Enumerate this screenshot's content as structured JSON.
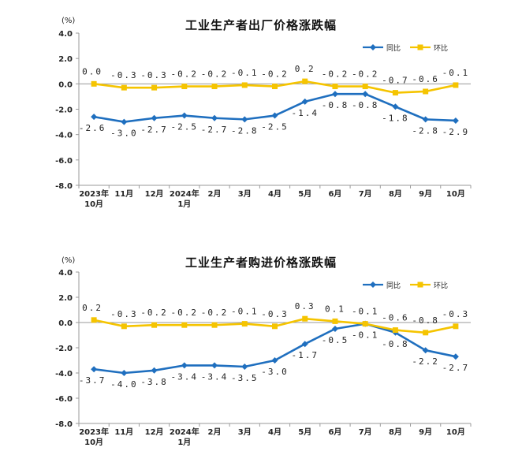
{
  "charts": [
    {
      "unit": "(%)",
      "chart_data": {
        "type": "line",
        "title": "工业生产者出厂价格涨跌幅",
        "categories": [
          "2023年\n10月",
          "11月",
          "12月",
          "2024年\n1月",
          "2月",
          "3月",
          "4月",
          "5月",
          "6月",
          "7月",
          "8月",
          "9月",
          "10月"
        ],
        "ylim": [
          -8.0,
          4.0
        ],
        "yticks": [
          "4.0",
          "2.0",
          "0.0",
          "-2.0",
          "-4.0",
          "-6.0",
          "-8.0"
        ],
        "legend_position": "top-right",
        "series": [
          {
            "name": "同比",
            "color": "#1F6FBF",
            "values": [
              -2.6,
              -3.0,
              -2.7,
              -2.5,
              -2.7,
              -2.8,
              -2.5,
              -1.4,
              -0.8,
              -0.8,
              -1.8,
              -2.8,
              -2.9
            ],
            "labels": [
              "-2.6",
              "-3.0",
              "-2.7",
              "-2.5",
              "-2.7",
              "-2.8",
              "-2.5",
              "-1.4",
              "-0.8",
              "-0.8",
              "-1.8",
              "-2.8",
              "-2.9"
            ]
          },
          {
            "name": "环比",
            "color": "#F5C400",
            "values": [
              0.0,
              -0.3,
              -0.3,
              -0.2,
              -0.2,
              -0.1,
              -0.2,
              0.2,
              -0.2,
              -0.2,
              -0.7,
              -0.6,
              -0.1
            ],
            "labels": [
              "0.0",
              "-0.3",
              "-0.3",
              "-0.2",
              "-0.2",
              "-0.1",
              "-0.2",
              "0.2",
              "-0.2",
              "-0.2",
              "-0.7",
              "-0.6",
              "-0.1"
            ]
          }
        ]
      }
    },
    {
      "unit": "(%)",
      "chart_data": {
        "type": "line",
        "title": "工业生产者购进价格涨跌幅",
        "categories": [
          "2023年\n10月",
          "11月",
          "12月",
          "2024年\n1月",
          "2月",
          "3月",
          "4月",
          "5月",
          "6月",
          "7月",
          "8月",
          "9月",
          "10月"
        ],
        "ylim": [
          -8.0,
          4.0
        ],
        "yticks": [
          "4.0",
          "2.0",
          "0.0",
          "-2.0",
          "-4.0",
          "-6.0",
          "-8.0"
        ],
        "legend_position": "top-right",
        "series": [
          {
            "name": "同比",
            "color": "#1F6FBF",
            "values": [
              -3.7,
              -4.0,
              -3.8,
              -3.4,
              -3.4,
              -3.5,
              -3.0,
              -1.7,
              -0.5,
              -0.1,
              -0.8,
              -2.2,
              -2.7
            ],
            "labels": [
              "-3.7",
              "-4.0",
              "-3.8",
              "-3.4",
              "-3.4",
              "-3.5",
              "-3.0",
              "-1.7",
              "-0.5",
              "-0.1",
              "-0.8",
              "-2.2",
              "-2.7"
            ]
          },
          {
            "name": "环比",
            "color": "#F5C400",
            "values": [
              0.2,
              -0.3,
              -0.2,
              -0.2,
              -0.2,
              -0.1,
              -0.3,
              0.3,
              0.1,
              -0.1,
              -0.6,
              -0.8,
              -0.3
            ],
            "labels": [
              "0.2",
              "-0.3",
              "-0.2",
              "-0.2",
              "-0.2",
              "-0.1",
              "-0.3",
              "0.3",
              "0.1",
              "-0.1",
              "-0.6",
              "-0.8",
              "-0.3"
            ]
          }
        ]
      }
    }
  ]
}
